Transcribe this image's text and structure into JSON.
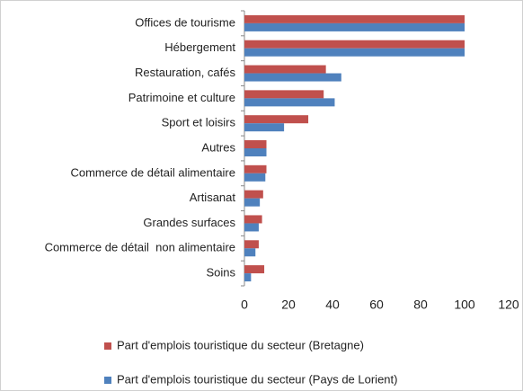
{
  "chart_data": {
    "type": "hbar",
    "categories": [
      "Offices de tourisme",
      "Hébergement",
      "Restauration, cafés",
      "Patrimoine et culture",
      "Sport et loisirs",
      "Autres",
      "Commerce de détail alimentaire",
      "Artisanat",
      "Grandes surfaces",
      "Commerce de détail  non alimentaire",
      "Soins"
    ],
    "series": [
      {
        "name": "Part d'emplois touristique du secteur (Bretagne)",
        "color": "#c0504d",
        "values": [
          100,
          100,
          37,
          36,
          29,
          10,
          10,
          8.5,
          8,
          6.5,
          9
        ]
      },
      {
        "name": "Part d'emplois touristique du secteur (Pays de Lorient)",
        "color": "#4f81bd",
        "values": [
          100,
          100,
          44,
          41,
          18,
          10,
          9.5,
          7,
          6.5,
          5,
          3
        ]
      }
    ],
    "xlim": [
      0,
      120
    ],
    "xticks": [
      0,
      20,
      40,
      60,
      80,
      100,
      120
    ],
    "grid": false,
    "legend": "bottom"
  }
}
